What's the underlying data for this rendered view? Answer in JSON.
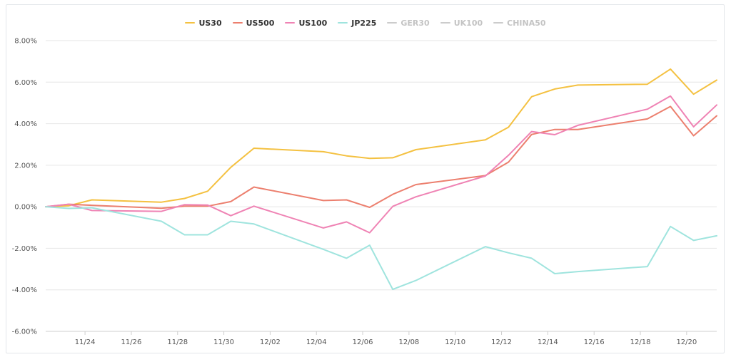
{
  "chart_data": {
    "type": "line",
    "title": "",
    "xlabel": "",
    "ylabel": "",
    "ylim": [
      -6,
      8
    ],
    "y_ticks": [
      "8.00%",
      "6.00%",
      "4.00%",
      "2.00%",
      "0.00%",
      "-2.00%",
      "-4.00%",
      "-6.00%"
    ],
    "y_tick_values": [
      8,
      6,
      4,
      2,
      0,
      -2,
      -4,
      -6
    ],
    "x_ticks": [
      "11/24",
      "11/26",
      "11/28",
      "11/30",
      "12/02",
      "12/04",
      "12/06",
      "12/08",
      "12/10",
      "12/12",
      "12/14",
      "12/16",
      "12/18",
      "12/20"
    ],
    "x_tick_days": [
      2,
      4,
      6,
      8,
      10,
      12,
      14,
      16,
      18,
      20,
      22,
      24,
      26,
      28
    ],
    "x_day_range": [
      0.3,
      29.3
    ],
    "grid": true,
    "legend_position": "top-center",
    "series": [
      {
        "name": "US30",
        "color": "#f4c141",
        "visible": true,
        "x": [
          0.3,
          1.3,
          2.3,
          5.3,
          6.3,
          7.3,
          8.3,
          9.3,
          12.3,
          13.3,
          14.3,
          15.3,
          16.3,
          19.3,
          20.3,
          21.3,
          22.3,
          23.3,
          26.3,
          27.3,
          28.3,
          29.3
        ],
        "values": [
          0.0,
          0.05,
          0.33,
          0.22,
          0.4,
          0.75,
          1.9,
          2.82,
          2.65,
          2.45,
          2.33,
          2.36,
          2.75,
          3.22,
          3.83,
          5.3,
          5.67,
          5.86,
          5.9,
          6.63,
          5.42,
          6.1
        ]
      },
      {
        "name": "US500",
        "color": "#ec7f6e",
        "visible": true,
        "x": [
          0.3,
          1.3,
          2.3,
          5.3,
          6.3,
          7.3,
          8.3,
          9.3,
          12.3,
          13.3,
          14.3,
          15.3,
          16.3,
          19.3,
          20.3,
          21.3,
          22.3,
          23.3,
          26.3,
          27.3,
          28.3,
          29.3
        ],
        "values": [
          0.0,
          0.12,
          0.07,
          -0.07,
          0.03,
          0.03,
          0.25,
          0.95,
          0.3,
          0.33,
          -0.03,
          0.6,
          1.07,
          1.5,
          2.15,
          3.48,
          3.72,
          3.72,
          4.23,
          4.83,
          3.42,
          4.38
        ]
      },
      {
        "name": "US100",
        "color": "#ef83b4",
        "visible": true,
        "x": [
          0.3,
          1.3,
          2.3,
          5.3,
          6.3,
          7.3,
          8.3,
          9.3,
          12.3,
          13.3,
          14.3,
          15.3,
          16.3,
          19.3,
          20.3,
          21.3,
          22.3,
          23.3,
          26.3,
          27.3,
          28.3,
          29.3
        ],
        "values": [
          0.0,
          0.12,
          -0.18,
          -0.22,
          0.1,
          0.08,
          -0.43,
          0.03,
          -1.02,
          -0.73,
          -1.25,
          0.02,
          0.48,
          1.48,
          2.48,
          3.62,
          3.47,
          3.92,
          4.7,
          5.33,
          3.85,
          4.9
        ]
      },
      {
        "name": "JP225",
        "color": "#9fe4de",
        "visible": true,
        "x": [
          0.3,
          1.3,
          2.3,
          5.3,
          6.3,
          7.3,
          8.3,
          9.3,
          12.3,
          13.3,
          14.3,
          15.3,
          16.3,
          19.3,
          20.3,
          21.3,
          22.3,
          23.3,
          26.3,
          27.3,
          28.3,
          29.3
        ],
        "values": [
          0.0,
          -0.08,
          -0.05,
          -0.7,
          -1.35,
          -1.35,
          -0.7,
          -0.83,
          -2.05,
          -2.48,
          -1.85,
          -3.98,
          -3.55,
          -1.92,
          -2.22,
          -2.48,
          -3.22,
          -3.12,
          -2.88,
          -0.95,
          -1.62,
          -1.4
        ]
      },
      {
        "name": "GER30",
        "color": "#cccccc",
        "visible": false
      },
      {
        "name": "UK100",
        "color": "#cccccc",
        "visible": false
      },
      {
        "name": "CHINA50",
        "color": "#cccccc",
        "visible": false
      }
    ]
  }
}
